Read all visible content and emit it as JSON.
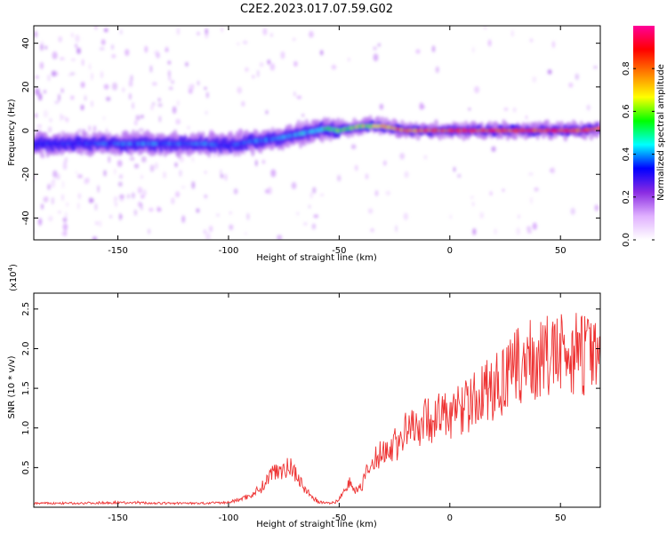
{
  "title": "C2E2.2023.017.07.59.G02",
  "chart_data": [
    {
      "type": "heatmap",
      "xlabel": "Height of straight line (km)",
      "ylabel": "Frequency (Hz)",
      "xlim": [
        -188,
        68
      ],
      "ylim": [
        -50,
        48
      ],
      "xticks": [
        -150,
        -100,
        -50,
        0,
        50
      ],
      "xtick_labels": [
        "-150",
        "-100",
        "-50",
        "0",
        "50"
      ],
      "yticks": [
        -40,
        -20,
        0,
        20,
        40
      ],
      "ytick_labels": [
        "-40",
        "-20",
        "0",
        "20",
        "40"
      ],
      "colorbar": {
        "label": "Normalized spectral amplitude",
        "range": [
          0,
          1
        ],
        "ticks": [
          0.0,
          0.2,
          0.4,
          0.6,
          0.8
        ],
        "tick_labels": [
          "0.0",
          "0.2",
          "0.4",
          "0.6",
          "0.8"
        ],
        "colors": [
          "#ffffff",
          "#e0b0ff",
          "#8a2be2",
          "#0000ff",
          "#00ffff",
          "#00ff00",
          "#ffff00",
          "#ff8000",
          "#ff0000",
          "#ff0099"
        ]
      },
      "ridge": {
        "x": [
          -188,
          -170,
          -150,
          -130,
          -110,
          -100,
          -90,
          -80,
          -70,
          -60,
          -55,
          -50,
          -45,
          -40,
          -30,
          -20,
          -10,
          0,
          10,
          20,
          30,
          40,
          50,
          60,
          68
        ],
        "freq": [
          -6,
          -6,
          -6,
          -6,
          -6,
          -7,
          -5,
          -4,
          -2,
          0,
          1,
          0,
          1,
          2,
          2,
          0,
          0,
          0,
          0,
          0,
          0,
          0,
          0,
          0,
          1
        ],
        "amplitude": [
          0.35,
          0.35,
          0.4,
          0.4,
          0.4,
          0.35,
          0.4,
          0.4,
          0.45,
          0.45,
          0.55,
          0.6,
          0.6,
          0.65,
          0.75,
          0.8,
          0.85,
          0.85,
          0.9,
          0.9,
          0.9,
          0.9,
          0.85,
          0.85,
          0.8
        ]
      }
    },
    {
      "type": "line",
      "xlabel": "Height of straight line (km)",
      "ylabel": "SNR (10 * v/v)",
      "y_exponent": "(x10",
      "y_exponent_power": "4",
      "y_exponent_close": ")",
      "xlim": [
        -188,
        68
      ],
      "ylim": [
        0,
        2.7
      ],
      "xticks": [
        -150,
        -100,
        -50,
        0,
        50
      ],
      "xtick_labels": [
        "-150",
        "-100",
        "-50",
        "0",
        "50"
      ],
      "yticks": [
        0.5,
        1.0,
        1.5,
        2.0,
        2.5
      ],
      "ytick_labels": [
        "0.5",
        "1.0",
        "1.5",
        "2.0",
        "2.5"
      ],
      "color": "#ee3333",
      "series": [
        {
          "x": [
            -188,
            -170,
            -150,
            -130,
            -110,
            -100,
            -95,
            -90,
            -85,
            -80,
            -78,
            -75,
            -72,
            -70,
            -68,
            -66,
            -64,
            -62,
            -60,
            -58,
            -55,
            -52,
            -50,
            -48,
            -46,
            -44,
            -42,
            -40,
            -38,
            -35,
            -32,
            -30,
            -28,
            -25,
            -22,
            -20,
            -15,
            -10,
            -5,
            0,
            5,
            10,
            15,
            20,
            25,
            30,
            35,
            40,
            45,
            50,
            55,
            58,
            60,
            62,
            65,
            68
          ],
          "y": [
            0.05,
            0.05,
            0.06,
            0.05,
            0.05,
            0.06,
            0.1,
            0.15,
            0.25,
            0.45,
            0.5,
            0.48,
            0.5,
            0.45,
            0.35,
            0.25,
            0.18,
            0.12,
            0.08,
            0.06,
            0.05,
            0.06,
            0.1,
            0.2,
            0.3,
            0.3,
            0.2,
            0.25,
            0.4,
            0.55,
            0.65,
            0.75,
            0.7,
            0.8,
            0.85,
            0.95,
            1.05,
            1.1,
            1.15,
            1.15,
            1.25,
            1.3,
            1.45,
            1.5,
            1.6,
            1.75,
            1.85,
            1.85,
            1.9,
            1.9,
            1.95,
            2.05,
            1.9,
            1.95,
            1.85,
            1.95
          ]
        }
      ]
    }
  ]
}
